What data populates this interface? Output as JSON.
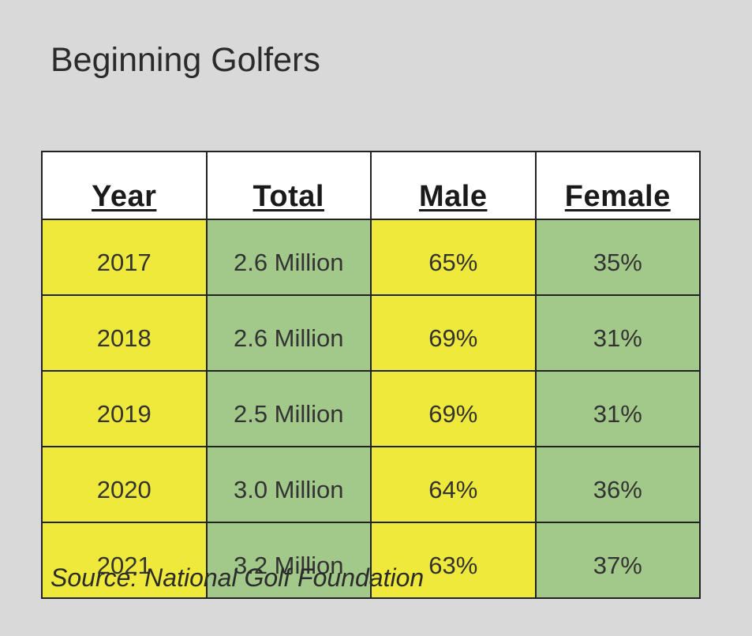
{
  "chart_data": {
    "type": "table",
    "title": "Beginning Golfers",
    "columns": [
      "Year",
      "Total",
      "Male",
      "Female"
    ],
    "rows": [
      [
        "2017",
        "2.6 Million",
        "65%",
        "35%"
      ],
      [
        "2018",
        "2.6 Million",
        "69%",
        "31%"
      ],
      [
        "2019",
        "2.5 Million",
        "69%",
        "31%"
      ],
      [
        "2020",
        "3.0 Million",
        "64%",
        "36%"
      ],
      [
        "2021",
        "3.2 Million",
        "63%",
        "37%"
      ]
    ],
    "source": "Source: National Golf Foundation"
  },
  "colors": {
    "background": "#d9d9d9",
    "header": "#ffffff",
    "yellow_column": "#eee93a",
    "green_column": "#a3c98a",
    "border": "#222222"
  }
}
